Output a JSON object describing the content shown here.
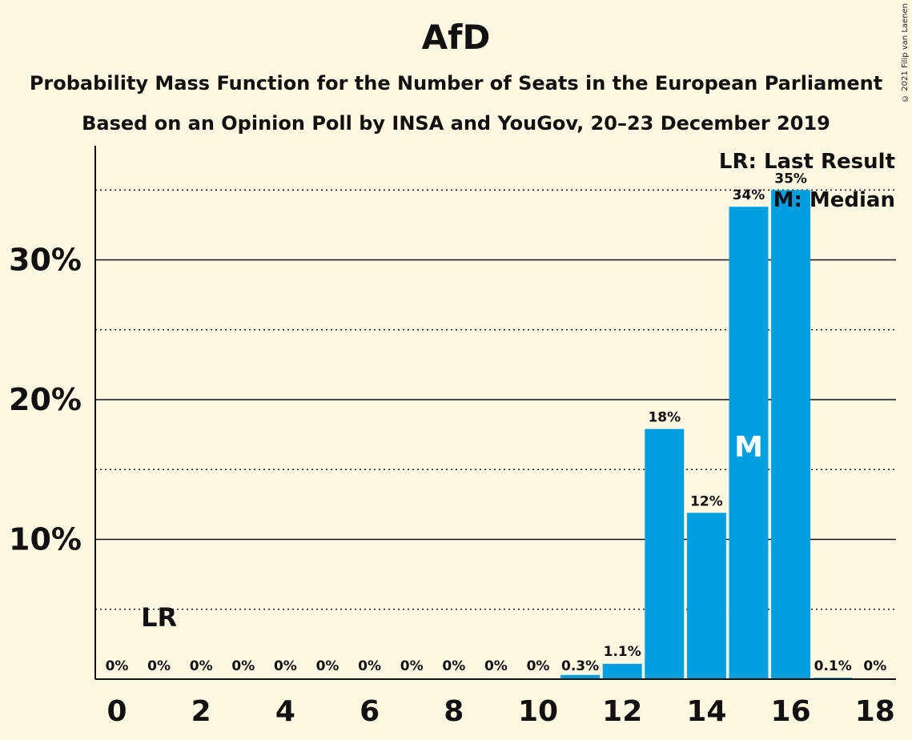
{
  "title": "AfD",
  "subtitle1": "Probability Mass Function for the Number of Seats in the European Parliament",
  "subtitle2": "Based on an Opinion Poll by INSA and YouGov, 20–23 December 2019",
  "copyright": "© 2021 Filip van Laenen",
  "legend": {
    "last_result": "LR: Last Result",
    "median": "M: Median"
  },
  "markers": {
    "last_result_label": "LR",
    "last_result_seat": 1,
    "median_label": "M",
    "median_seat": 15
  },
  "colors": {
    "bar": "#009FE0",
    "background": "#FEF8E3"
  },
  "chart_data": {
    "type": "bar",
    "categories": [
      0,
      1,
      2,
      3,
      4,
      5,
      6,
      7,
      8,
      9,
      10,
      11,
      12,
      13,
      14,
      15,
      16,
      17,
      18
    ],
    "values": [
      0,
      0,
      0,
      0,
      0,
      0,
      0,
      0,
      0,
      0,
      0,
      0.3,
      1.1,
      17.9,
      11.9,
      33.8,
      35.0,
      0.1,
      0
    ],
    "data_labels": [
      "0%",
      "0%",
      "0%",
      "0%",
      "0%",
      "0%",
      "0%",
      "0%",
      "0%",
      "0%",
      "0%",
      "0.3%",
      "1.1%",
      "18%",
      "12%",
      "34%",
      "35%",
      "0.1%",
      "0%"
    ],
    "x_tick_labels": [
      "0",
      "2",
      "4",
      "6",
      "8",
      "10",
      "12",
      "14",
      "16",
      "18"
    ],
    "y_tick_labels": [
      "10%",
      "20%",
      "30%"
    ],
    "y_ticks": [
      10,
      20,
      30
    ],
    "y_minor_ticks": [
      5,
      15,
      25,
      35
    ],
    "ylim": [
      0,
      38
    ],
    "xlabel": "",
    "ylabel": "",
    "grid": true,
    "legend_position": "top-right"
  }
}
